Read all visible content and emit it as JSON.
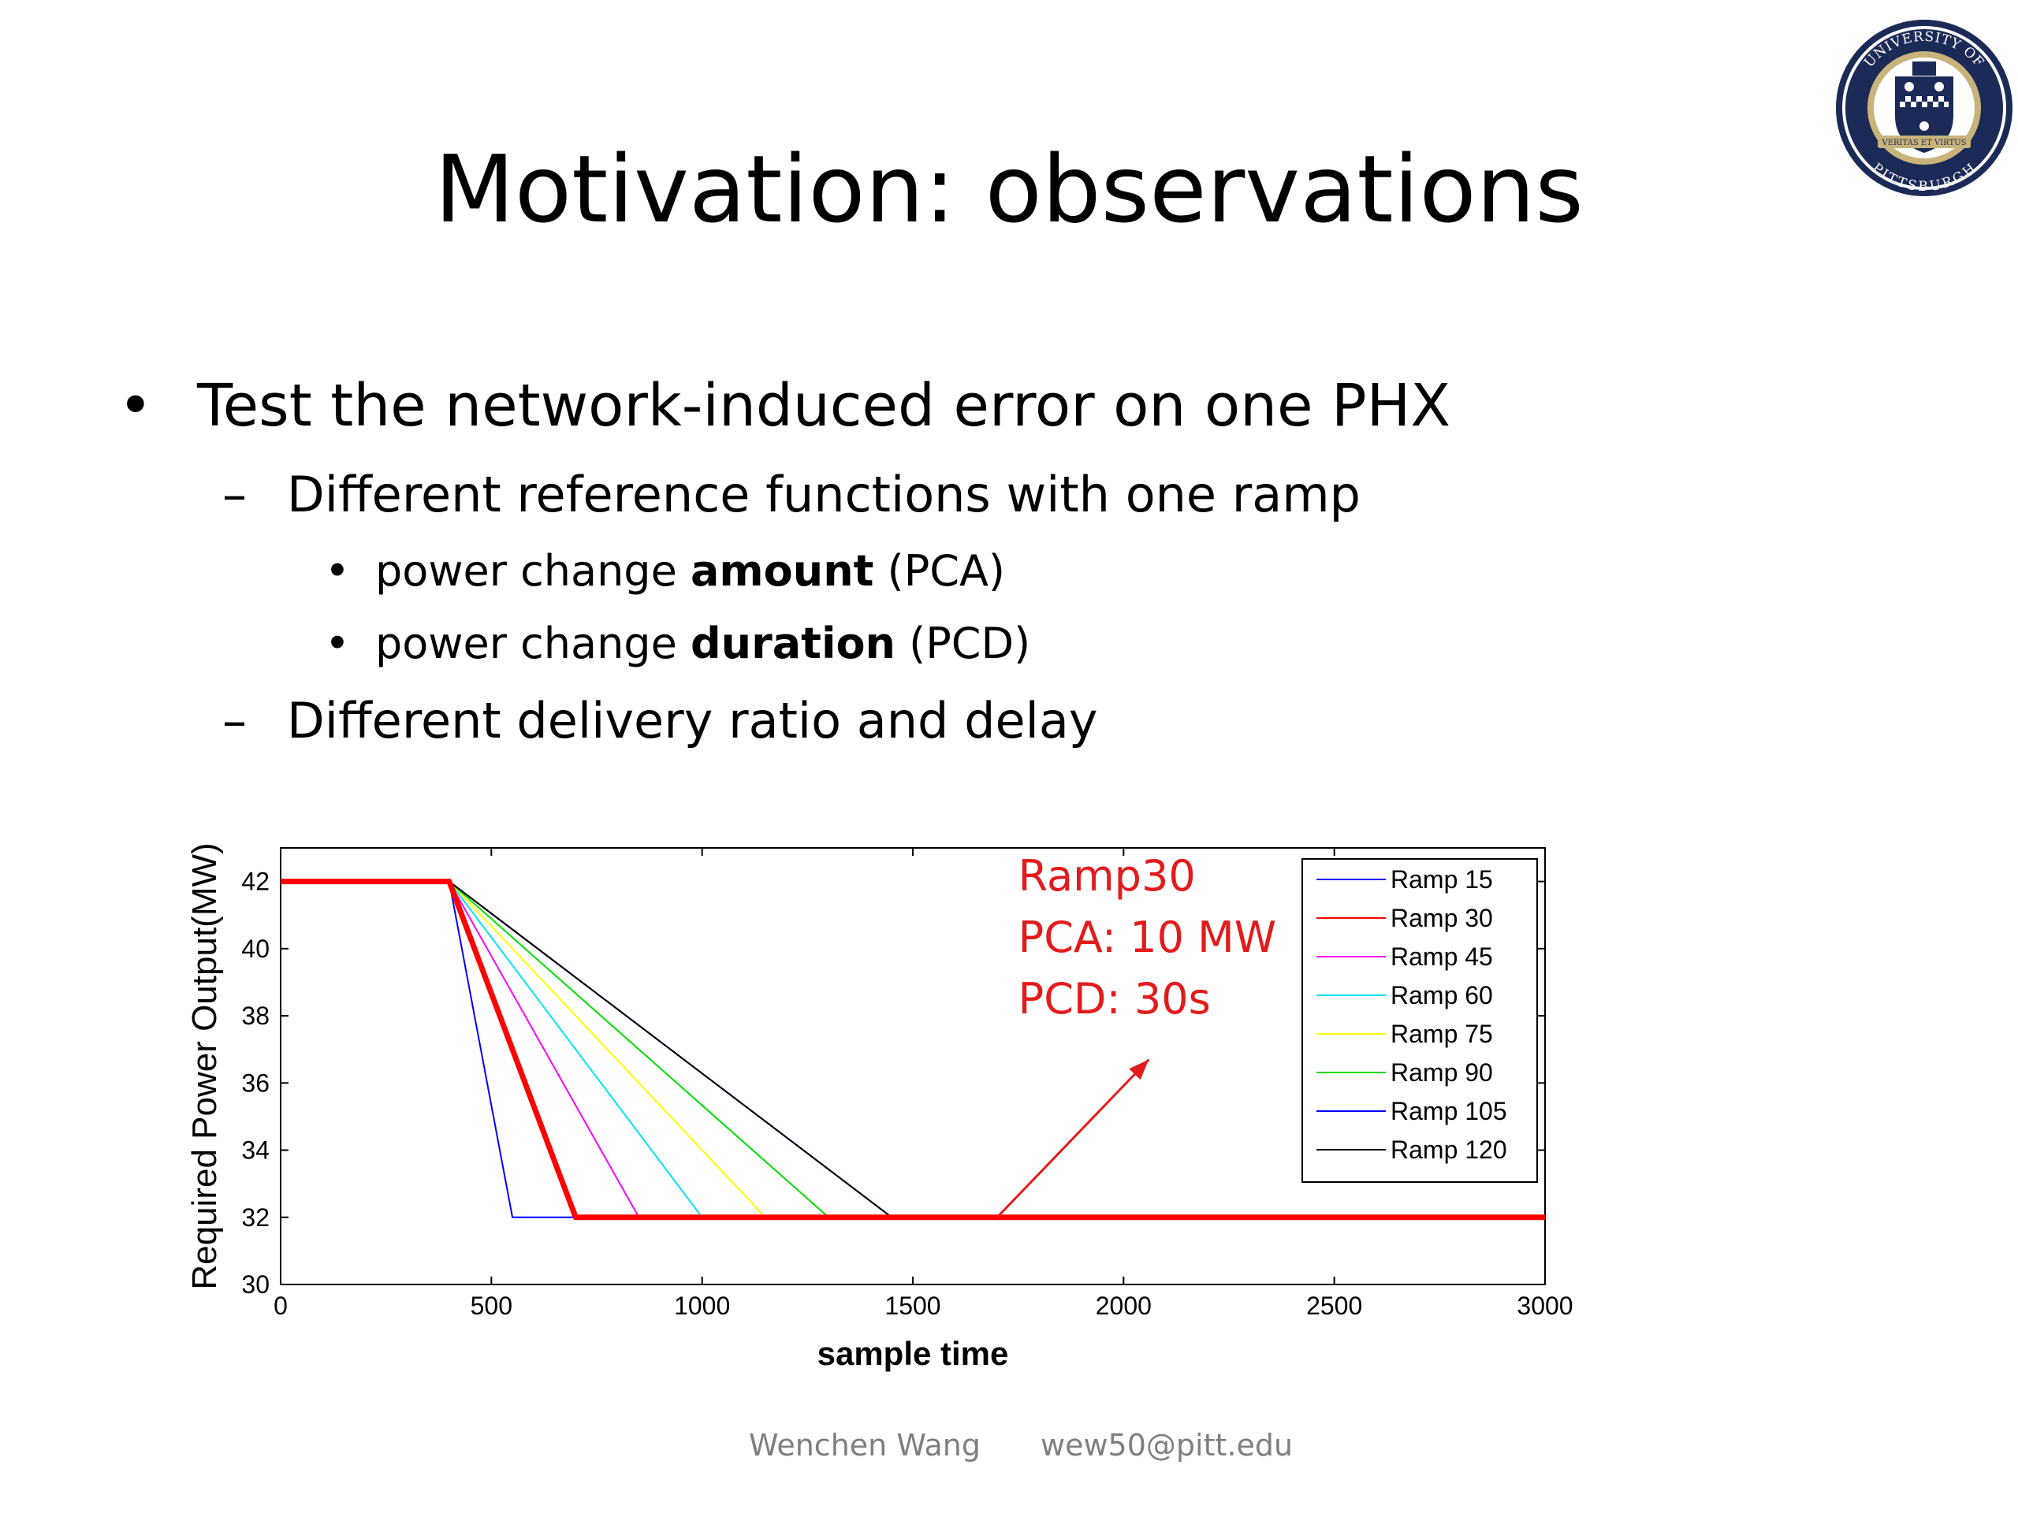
{
  "slide": {
    "title": "Motivation: observations",
    "bullets": {
      "l1_mark": "•",
      "l1_text": "Test the network-induced error on one PHX",
      "l2a_mark": "–",
      "l2a_text": "Different reference functions with one ramp",
      "l3a_mark": "•",
      "l3a_pre": "power change ",
      "l3a_bold": "amount",
      "l3a_post": " (PCA)",
      "l3b_mark": "•",
      "l3b_pre": "power change ",
      "l3b_bold": "duration",
      "l3b_post": " (PCD)",
      "l2b_mark": "–",
      "l2b_text": "Different delivery ratio and delay"
    },
    "logo": {
      "text_top": "UNIVERSITY OF",
      "text_bottom": "PITTSBURGH",
      "ribbon": "VERITAS ET VIRTUS",
      "icon": "university-seal-icon"
    },
    "footer": {
      "author": "Wenchen Wang",
      "email": "wew50@pitt.edu"
    }
  },
  "chart_data": {
    "type": "line",
    "xlabel": "sample time",
    "ylabel": "Required Power Output(MW)",
    "xlim": [
      0,
      3000
    ],
    "ylim": [
      30,
      43
    ],
    "xticks": [
      0,
      500,
      1000,
      1500,
      2000,
      2500,
      3000
    ],
    "yticks": [
      30,
      32,
      34,
      36,
      38,
      40,
      42
    ],
    "legend_position": "top-right",
    "series": [
      {
        "name": "Ramp 15",
        "color": "#0000ff",
        "x": [
          0,
          400,
          550,
          3000
        ],
        "y": [
          42,
          42,
          32,
          32
        ]
      },
      {
        "name": "Ramp 30",
        "color": "#ff0000",
        "x": [
          0,
          400,
          700,
          3000
        ],
        "y": [
          42,
          42,
          32,
          32
        ]
      },
      {
        "name": "Ramp 45",
        "color": "#ff00ff",
        "x": [
          0,
          400,
          850,
          3000
        ],
        "y": [
          42,
          42,
          32,
          32
        ]
      },
      {
        "name": "Ramp 60",
        "color": "#00e5ee",
        "x": [
          0,
          400,
          1000,
          3000
        ],
        "y": [
          42,
          42,
          32,
          32
        ]
      },
      {
        "name": "Ramp 75",
        "color": "#ffff00",
        "x": [
          0,
          400,
          1150,
          3000
        ],
        "y": [
          42,
          42,
          32,
          32
        ]
      },
      {
        "name": "Ramp 90",
        "color": "#00dd00",
        "x": [
          0,
          400,
          1300,
          3000
        ],
        "y": [
          42,
          42,
          32,
          32
        ]
      },
      {
        "name": "Ramp 105",
        "color": "#0000ff",
        "x": [
          0,
          400,
          1450,
          3000
        ],
        "y": [
          42,
          42,
          32,
          32
        ]
      },
      {
        "name": "Ramp 120",
        "color": "#000000",
        "x": [
          0,
          400,
          1450,
          3000
        ],
        "y": [
          42,
          42,
          32,
          32
        ]
      }
    ],
    "highlight": {
      "series": "Ramp 30",
      "color": "#ff0000"
    },
    "annotation": {
      "lines": [
        "Ramp30",
        "PCA: 10 MW",
        "PCD: 30s"
      ],
      "color": "#e31b1b",
      "arrow_from": [
        1700,
        32
      ],
      "arrow_to": [
        2060,
        36.7
      ]
    }
  }
}
